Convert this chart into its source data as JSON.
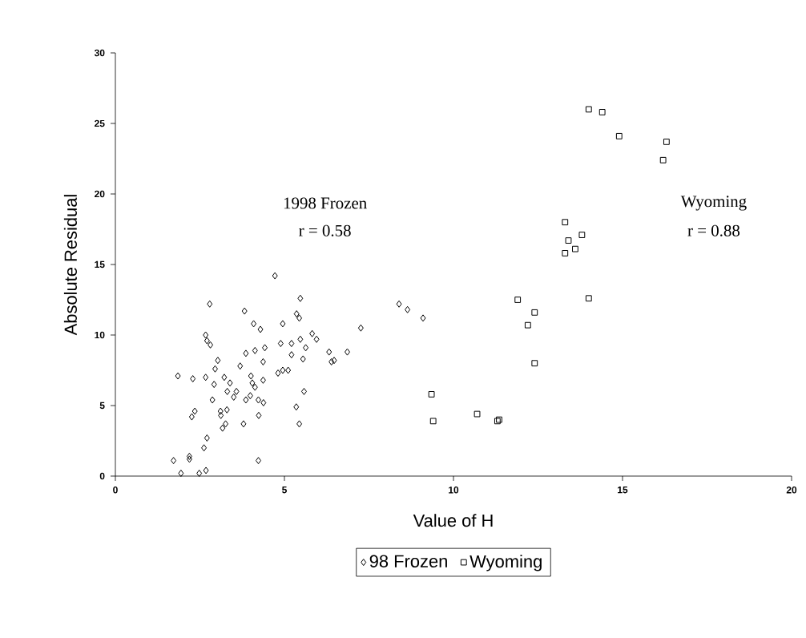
{
  "chart_data": {
    "type": "scatter",
    "xlabel": "Value of H",
    "ylabel": "Absolute Residual",
    "xlim": [
      0,
      20
    ],
    "ylim": [
      0,
      30
    ],
    "xticks": [
      0,
      5,
      10,
      15,
      20
    ],
    "yticks": [
      0,
      5,
      10,
      15,
      20,
      25,
      30
    ],
    "grid": false,
    "legend": "bottom",
    "annotations": [
      "1998 Frozen",
      "r = 0.58",
      "Wyoming",
      "r = 0.88"
    ],
    "series": [
      {
        "name": "98 Frozen",
        "color": "#000000",
        "marker": "diamond",
        "x": [
          4.72,
          5.47,
          2.79,
          3.82,
          5.36,
          5.44,
          8.39,
          8.64,
          4.09,
          4.95,
          4.29,
          2.67,
          2.71,
          2.81,
          5.47,
          5.82,
          5.95,
          7.26,
          4.89,
          5.21,
          5.63,
          4.42,
          4.13,
          3.86,
          6.32,
          6.86,
          3.03,
          5.55,
          6.39,
          6.47,
          5.21,
          3.69,
          4.37,
          2.95,
          4.95,
          5.11,
          4.81,
          1.85,
          2.29,
          2.67,
          3.22,
          2.92,
          3.39,
          4.01,
          4.37,
          4.05,
          3.31,
          3.58,
          3.5,
          4.13,
          3.99,
          4.23,
          2.87,
          3.11,
          3.3,
          3.12,
          3.79,
          3.26,
          3.17,
          4.24,
          5.58,
          5.35,
          5.44,
          2.35,
          2.26,
          2.71,
          2.62,
          2.19,
          2.19,
          1.72,
          1.94,
          2.48,
          2.68,
          4.23,
          3.86,
          4.38,
          9.1
        ],
        "values": [
          14.2,
          12.6,
          12.2,
          11.7,
          11.5,
          11.2,
          12.2,
          11.8,
          10.8,
          10.8,
          10.4,
          10.0,
          9.6,
          9.3,
          9.7,
          10.1,
          9.7,
          10.5,
          9.4,
          9.4,
          9.1,
          9.1,
          8.9,
          8.7,
          8.8,
          8.8,
          8.2,
          8.3,
          8.1,
          8.2,
          8.6,
          7.8,
          8.1,
          7.6,
          7.5,
          7.5,
          7.3,
          7.1,
          6.9,
          7.0,
          7.0,
          6.5,
          6.6,
          7.1,
          6.8,
          6.6,
          6.0,
          6.0,
          5.6,
          6.3,
          5.7,
          5.4,
          5.4,
          4.6,
          4.7,
          4.3,
          3.7,
          3.7,
          3.4,
          4.3,
          6.0,
          4.9,
          3.7,
          4.6,
          4.2,
          2.7,
          2.0,
          1.4,
          1.2,
          1.1,
          0.2,
          0.2,
          0.4,
          1.1,
          5.4,
          5.2,
          11.2
        ]
      },
      {
        "name": "Wyoming",
        "color": "#000000",
        "marker": "square",
        "x": [
          14.0,
          14.4,
          14.9,
          16.3,
          16.2,
          13.3,
          13.8,
          13.4,
          13.6,
          13.3,
          11.9,
          14.0,
          12.4,
          12.2,
          12.4,
          9.35,
          9.4,
          10.7,
          11.3,
          11.35
        ],
        "values": [
          26.0,
          25.8,
          24.1,
          23.7,
          22.4,
          18.0,
          17.1,
          16.7,
          16.1,
          15.8,
          12.5,
          12.6,
          11.6,
          10.7,
          8.0,
          5.8,
          3.9,
          4.4,
          3.9,
          4.0
        ]
      }
    ]
  }
}
